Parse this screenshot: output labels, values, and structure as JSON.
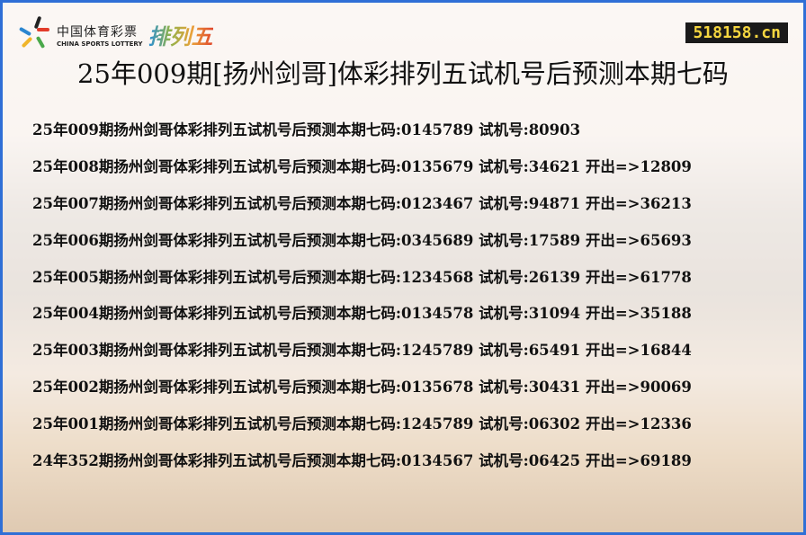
{
  "logo": {
    "cn": "中国体育彩票",
    "en": "CHINA SPORTS LOTTERY",
    "game": "排列五"
  },
  "site": "518158.cn",
  "title": "25年009期[扬州剑哥]体彩排列五试机号后预测本期七码",
  "rows": [
    {
      "text": "25年009期扬州剑哥体彩排列五试机号后预测本期七码:0145789 试机号:80903"
    },
    {
      "text": "25年008期扬州剑哥体彩排列五试机号后预测本期七码:0135679 试机号:34621 开出=>12809"
    },
    {
      "text": "25年007期扬州剑哥体彩排列五试机号后预测本期七码:0123467 试机号:94871 开出=>36213"
    },
    {
      "text": "25年006期扬州剑哥体彩排列五试机号后预测本期七码:0345689 试机号:17589 开出=>65693"
    },
    {
      "text": "25年005期扬州剑哥体彩排列五试机号后预测本期七码:1234568 试机号:26139 开出=>61778"
    },
    {
      "text": "25年004期扬州剑哥体彩排列五试机号后预测本期七码:0134578 试机号:31094 开出=>35188"
    },
    {
      "text": "25年003期扬州剑哥体彩排列五试机号后预测本期七码:1245789 试机号:65491 开出=>16844"
    },
    {
      "text": "25年002期扬州剑哥体彩排列五试机号后预测本期七码:0135678 试机号:30431 开出=>90069"
    },
    {
      "text": "25年001期扬州剑哥体彩排列五试机号后预测本期七码:1245789 试机号:06302 开出=>12336"
    },
    {
      "text": "24年352期扬州剑哥体彩排列五试机号后预测本期七码:0134567 试机号:06425 开出=>69189"
    }
  ]
}
